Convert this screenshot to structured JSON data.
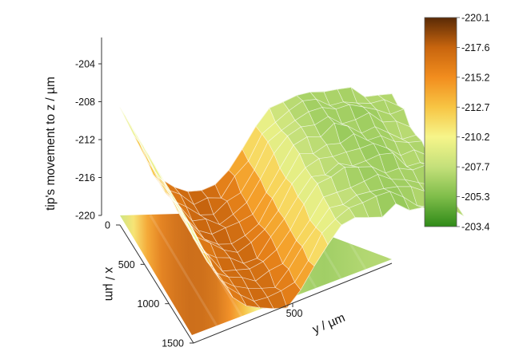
{
  "chart_data": {
    "type": "surface3d",
    "title": "",
    "zlabel": "tip's movement to z / µm",
    "xlabel": "x / µm",
    "ylabel": "y / µm",
    "z_ticks": [
      "-204",
      "-208",
      "-212",
      "-216",
      "-220"
    ],
    "x_ticks": [
      "0",
      "500",
      "1000",
      "1500"
    ],
    "y_ticks": [
      "500"
    ],
    "zlim": [
      -220,
      -204
    ],
    "xlim": [
      0,
      1500
    ],
    "ylim": [
      0,
      1000
    ],
    "colorbar": {
      "labels": [
        "-220.1",
        "-217.6",
        "-215.2",
        "-212.7",
        "-210.2",
        "-207.7",
        "-205.3",
        "-203.4"
      ],
      "min": -220.1,
      "max": -203.4,
      "colors": [
        "#5a2a06",
        "#c8650e",
        "#f28d1e",
        "#f7c544",
        "#f6f58a",
        "#c4e07a",
        "#7fbd4a",
        "#2f8a18"
      ]
    },
    "profile_along_y": {
      "y": [
        0,
        50,
        100,
        150,
        200,
        250,
        300,
        350,
        400,
        450,
        500,
        550,
        600,
        650,
        700,
        750,
        800,
        850,
        900,
        950,
        1000
      ],
      "z": [
        -208.6,
        -211.5,
        -214.3,
        -216.2,
        -217.1,
        -217.6,
        -217.5,
        -216.9,
        -215.4,
        -213.2,
        -210.8,
        -208.9,
        -207.8,
        -207.2,
        -206.9,
        -206.8,
        -207.0,
        -207.2,
        -207.4,
        -207.5,
        -207.5
      ]
    },
    "grid": false
  }
}
